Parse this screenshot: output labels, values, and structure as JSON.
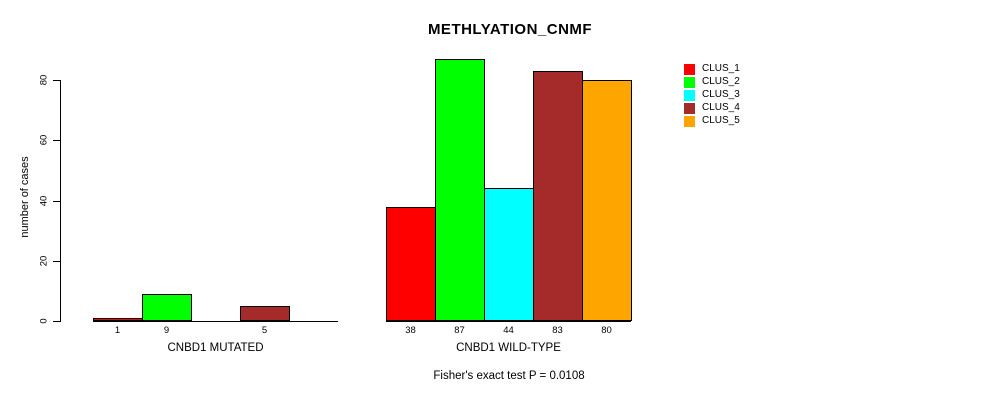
{
  "chart": {
    "title": "METHLYATION_CNMF",
    "y_axis_label": "number of cases",
    "annotation": "Fisher's exact test P = 0.0108"
  },
  "chart_data": {
    "type": "bar",
    "title": "METHLYATION_CNMF",
    "ylabel": "number of cases",
    "xlabel": "",
    "yticks": [
      0,
      20,
      40,
      60,
      80
    ],
    "ylim": [
      0,
      88
    ],
    "grid": false,
    "legend_position": "top-right",
    "series": [
      {
        "name": "CLUS_1",
        "color": "#FF0000"
      },
      {
        "name": "CLUS_2",
        "color": "#00FF00"
      },
      {
        "name": "CLUS_3",
        "color": "#00FFFF"
      },
      {
        "name": "CLUS_4",
        "color": "#A52A2A"
      },
      {
        "name": "CLUS_5",
        "color": "#FFA500"
      }
    ],
    "groups": [
      {
        "label": "CNBD1 MUTATED",
        "values": [
          1,
          9,
          0,
          5,
          0
        ],
        "bar_labels": [
          "1",
          "9",
          "",
          "5",
          ""
        ]
      },
      {
        "label": "CNBD1 WILD-TYPE",
        "values": [
          38,
          87,
          44,
          83,
          80
        ],
        "bar_labels": [
          "38",
          "87",
          "44",
          "83",
          "80"
        ]
      }
    ],
    "annotation": "Fisher's exact test P = 0.0108"
  }
}
